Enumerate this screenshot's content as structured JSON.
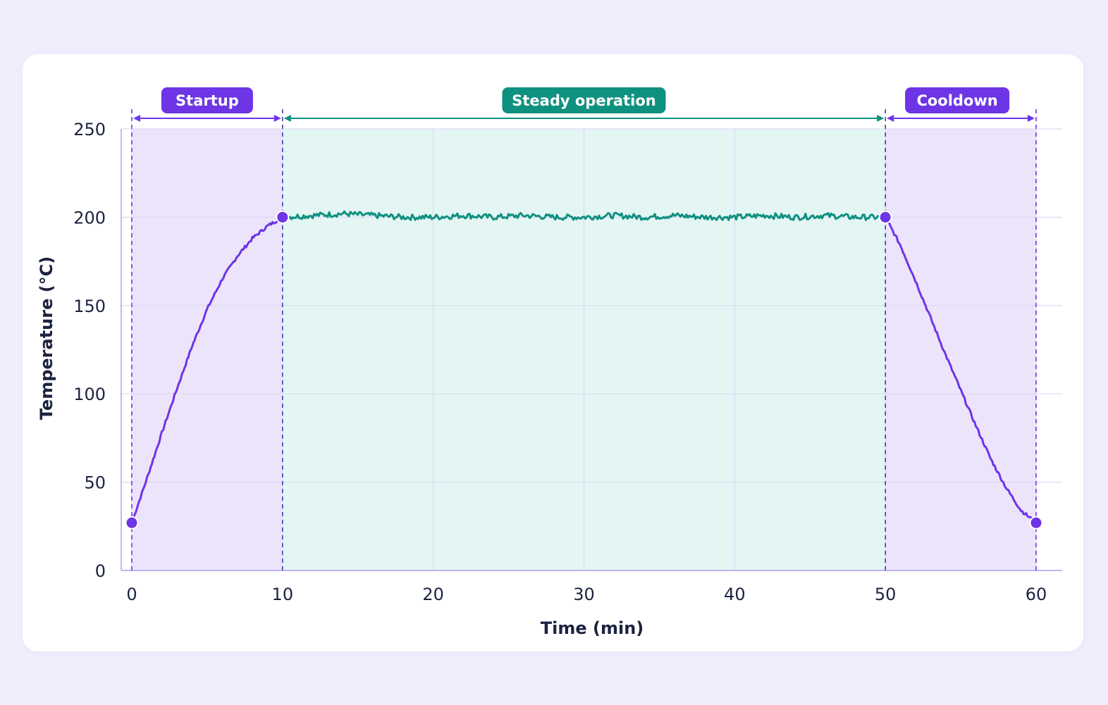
{
  "chart_data": {
    "type": "line",
    "title": "",
    "xlabel": "Time (min)",
    "ylabel": "Temperature (°C)",
    "xlim": [
      0,
      60
    ],
    "ylim": [
      0,
      250
    ],
    "xticks": [
      0,
      10,
      20,
      30,
      40,
      50,
      60
    ],
    "yticks": [
      0,
      50,
      100,
      150,
      200,
      250
    ],
    "grid": true,
    "phases": [
      {
        "label": "Startup",
        "start": 0,
        "end": 10,
        "fill": "#ece4fb",
        "color": "#6d35e6"
      },
      {
        "label": "Steady operation",
        "start": 10,
        "end": 50,
        "fill": "#e4f6f3",
        "color": "#0f9180"
      },
      {
        "label": "Cooldown",
        "start": 50,
        "end": 60,
        "fill": "#ece4fb",
        "color": "#6d35e6"
      }
    ],
    "series": [
      {
        "color": "#6d35e6",
        "x": [
          0,
          1,
          2,
          3,
          4,
          5,
          6,
          7,
          8,
          9,
          10
        ],
        "y": [
          27,
          52,
          78,
          103,
          127,
          148,
          165,
          178,
          188,
          195,
          200
        ]
      },
      {
        "color": "#0f9180",
        "x": [
          10,
          12,
          14,
          16,
          18,
          20,
          22,
          24,
          26,
          28,
          30,
          32,
          34,
          36,
          38,
          40,
          42,
          44,
          46,
          48,
          50
        ],
        "y": [
          200,
          201,
          202,
          201,
          200,
          200,
          201,
          200,
          201,
          200,
          200,
          201,
          200,
          201,
          200,
          200,
          201,
          200,
          201,
          200,
          200
        ]
      },
      {
        "color": "#6d35e6",
        "x": [
          50,
          51,
          52,
          53,
          54,
          55,
          56,
          57,
          58,
          59,
          60
        ],
        "y": [
          200,
          184,
          164,
          143,
          122,
          102,
          82,
          63,
          47,
          34,
          27
        ]
      }
    ],
    "markers": [
      {
        "x": 0,
        "y": 27
      },
      {
        "x": 10,
        "y": 200
      },
      {
        "x": 50,
        "y": 200
      },
      {
        "x": 60,
        "y": 27
      }
    ]
  }
}
